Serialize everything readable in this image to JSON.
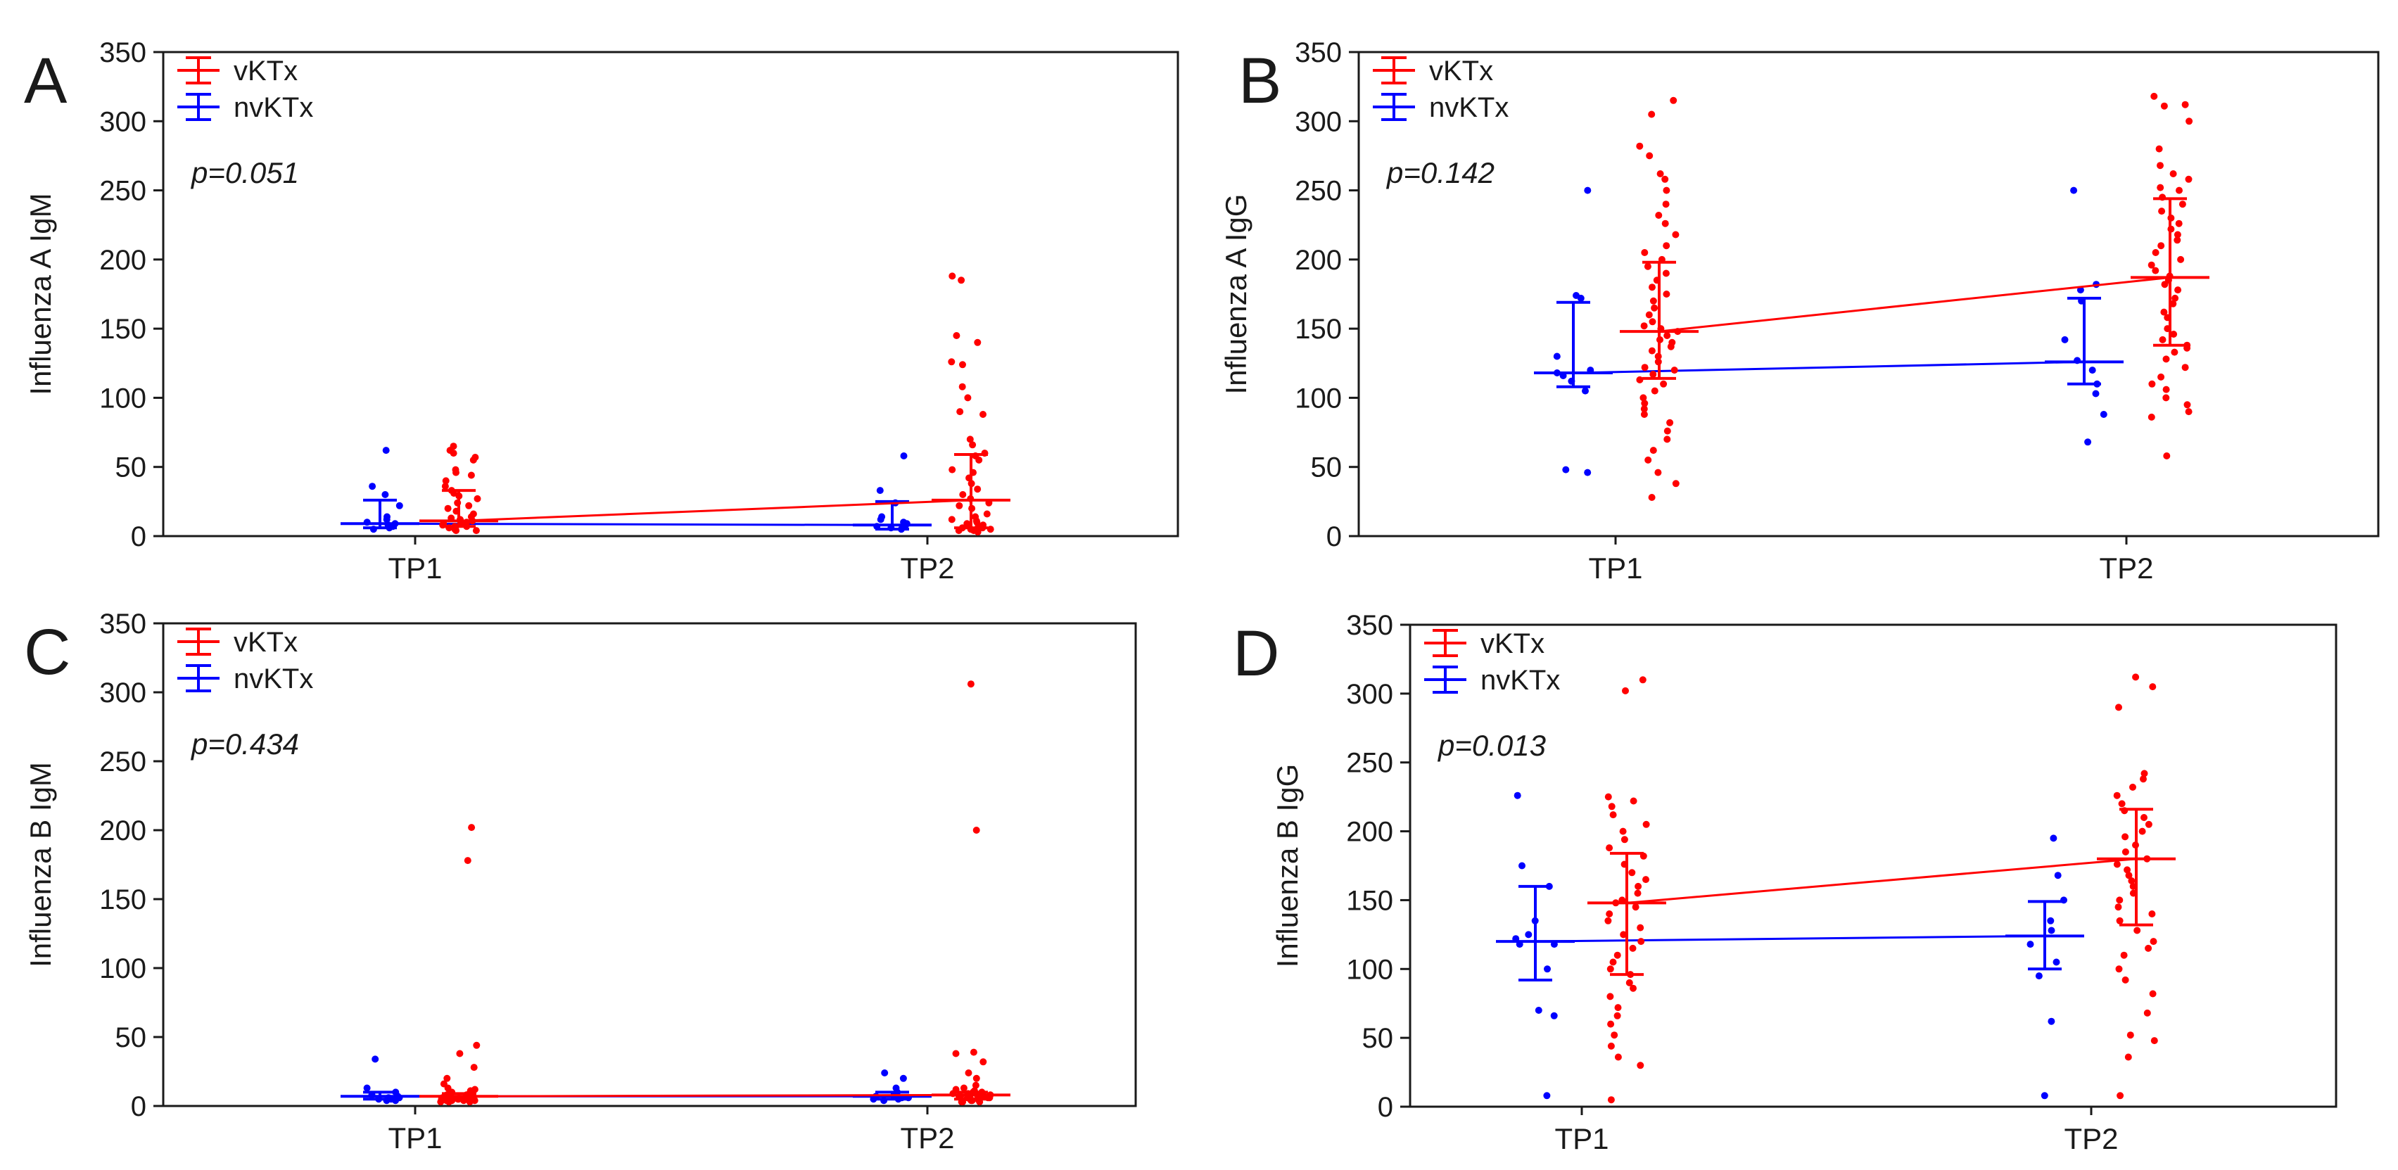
{
  "colors": {
    "vKTx": "#ff0000",
    "nvKTx": "#0000ff",
    "axis": "#1a1a1a"
  },
  "chart_data": [
    {
      "panel": "A",
      "type": "scatter",
      "ylabel": "Influenza A IgM",
      "ylim": [
        0,
        350
      ],
      "yticks": [
        0,
        50,
        100,
        150,
        200,
        250,
        300,
        350
      ],
      "categories": [
        "TP1",
        "TP2"
      ],
      "p_value": "p=0.051",
      "legend_position": "top-left",
      "series": [
        {
          "name": "nvKTx",
          "median": [
            9,
            8
          ],
          "q1": [
            6,
            5
          ],
          "q3": [
            26,
            25
          ],
          "points": [
            [
              62,
              36,
              30,
              22,
              14,
              12,
              10,
              9,
              8,
              7,
              6,
              5
            ],
            [
              58,
              33,
              24,
              14,
              12,
              10,
              9,
              8,
              7,
              6,
              5
            ]
          ]
        },
        {
          "name": "vKTx",
          "median": [
            11,
            26
          ],
          "q1": [
            7,
            6
          ],
          "q3": [
            33,
            59
          ],
          "points": [
            [
              65,
              62,
              60,
              57,
              55,
              48,
              46,
              44,
              40,
              36,
              33,
              31,
              29,
              27,
              24,
              22,
              20,
              18,
              16,
              14,
              13,
              12,
              11,
              10,
              9,
              9,
              8,
              8,
              7,
              7,
              6,
              6,
              5,
              5,
              4,
              4
            ],
            [
              188,
              185,
              145,
              140,
              126,
              124,
              108,
              100,
              90,
              88,
              70,
              66,
              60,
              58,
              55,
              48,
              46,
              42,
              38,
              34,
              30,
              27,
              24,
              22,
              20,
              16,
              14,
              12,
              11,
              10,
              9,
              8,
              7,
              6,
              6,
              5,
              5,
              4,
              4,
              3
            ]
          ]
        }
      ]
    },
    {
      "panel": "B",
      "type": "scatter",
      "ylabel": "Influenza A IgG",
      "ylim": [
        0,
        350
      ],
      "yticks": [
        0,
        50,
        100,
        150,
        200,
        250,
        300,
        350
      ],
      "categories": [
        "TP1",
        "TP2"
      ],
      "p_value": "p=0.142",
      "legend_position": "top-left",
      "series": [
        {
          "name": "nvKTx",
          "median": [
            118,
            126
          ],
          "q1": [
            108,
            110
          ],
          "q3": [
            169,
            172
          ],
          "points": [
            [
              250,
              174,
              172,
              130,
              120,
              118,
              116,
              112,
              105,
              48,
              46
            ],
            [
              250,
              182,
              178,
              170,
              142,
              127,
              120,
              110,
              103,
              88,
              68
            ]
          ]
        },
        {
          "name": "vKTx",
          "median": [
            148,
            187
          ],
          "q1": [
            114,
            138
          ],
          "q3": [
            198,
            244
          ],
          "points": [
            [
              315,
              305,
              282,
              275,
              262,
              258,
              250,
              240,
              232,
              226,
              218,
              210,
              205,
              200,
              195,
              190,
              185,
              180,
              175,
              170,
              165,
              160,
              155,
              152,
              150,
              148,
              145,
              142,
              140,
              137,
              134,
              130,
              126,
              122,
              120,
              117,
              113,
              110,
              105,
              100,
              96,
              92,
              88,
              82,
              76,
              70,
              62,
              55,
              46,
              38,
              28
            ],
            [
              318,
              312,
              311,
              300,
              280,
              268,
              262,
              258,
              252,
              250,
              245,
              240,
              235,
              230,
              226,
              222,
              218,
              214,
              210,
              205,
              200,
              196,
              192,
              188,
              185,
              182,
              178,
              172,
              168,
              162,
              158,
              150,
              146,
              142,
              138,
              136,
              133,
              128,
              122,
              115,
              110,
              106,
              100,
              95,
              90,
              86,
              58
            ]
          ]
        }
      ]
    },
    {
      "panel": "C",
      "type": "scatter",
      "ylabel": "Influenza B IgM",
      "ylim": [
        0,
        350
      ],
      "yticks": [
        0,
        50,
        100,
        150,
        200,
        250,
        300,
        350
      ],
      "categories": [
        "TP1",
        "TP2"
      ],
      "p_value": "p=0.434",
      "legend_position": "top-left",
      "series": [
        {
          "name": "nvKTx",
          "median": [
            7,
            7
          ],
          "q1": [
            5,
            5
          ],
          "q3": [
            10,
            10
          ],
          "points": [
            [
              34,
              13,
              10,
              8,
              7,
              6,
              6,
              5,
              5,
              4,
              4
            ],
            [
              24,
              20,
              13,
              10,
              8,
              7,
              6,
              6,
              5,
              5,
              4
            ]
          ]
        },
        {
          "name": "vKTx",
          "median": [
            7,
            8
          ],
          "q1": [
            5,
            5
          ],
          "q3": [
            9,
            10
          ],
          "points": [
            [
              202,
              178,
              44,
              38,
              28,
              20,
              16,
              13,
              12,
              11,
              10,
              10,
              9,
              9,
              8,
              8,
              8,
              7,
              7,
              7,
              6,
              6,
              6,
              6,
              5,
              5,
              5,
              5,
              4,
              4,
              4,
              4,
              3,
              3,
              3
            ],
            [
              306,
              200,
              39,
              38,
              32,
              24,
              20,
              15,
              13,
              12,
              11,
              10,
              10,
              9,
              9,
              8,
              8,
              8,
              7,
              7,
              7,
              6,
              6,
              6,
              6,
              5,
              5,
              5,
              4,
              4,
              4,
              3,
              3,
              3
            ]
          ]
        }
      ]
    },
    {
      "panel": "D",
      "type": "scatter",
      "ylabel": "Influenza B IgG",
      "ylim": [
        0,
        350
      ],
      "yticks": [
        0,
        50,
        100,
        150,
        200,
        250,
        300,
        350
      ],
      "categories": [
        "TP1",
        "TP2"
      ],
      "p_value": "p=0.013",
      "legend_position": "top-left",
      "series": [
        {
          "name": "nvKTx",
          "median": [
            120,
            124
          ],
          "q1": [
            92,
            100
          ],
          "q3": [
            160,
            149
          ],
          "points": [
            [
              226,
              175,
              160,
              135,
              125,
              122,
              118,
              118,
              100,
              70,
              66,
              8
            ],
            [
              195,
              168,
              150,
              135,
              128,
              118,
              105,
              95,
              62,
              8
            ]
          ]
        },
        {
          "name": "vKTx",
          "median": [
            148,
            180
          ],
          "q1": [
            96,
            132
          ],
          "q3": [
            184,
            216
          ],
          "points": [
            [
              310,
              302,
              225,
              222,
              218,
              212,
              205,
              200,
              194,
              188,
              182,
              176,
              170,
              165,
              160,
              155,
              150,
              148,
              145,
              140,
              135,
              130,
              125,
              120,
              115,
              110,
              105,
              100,
              96,
              90,
              86,
              80,
              72,
              66,
              60,
              52,
              44,
              36,
              30,
              5
            ],
            [
              312,
              305,
              290,
              242,
              238,
              232,
              226,
              220,
              215,
              210,
              205,
              200,
              196,
              190,
              185,
              180,
              176,
              172,
              168,
              164,
              160,
              155,
              150,
              145,
              140,
              135,
              128,
              120,
              115,
              110,
              100,
              92,
              82,
              68,
              52,
              48,
              36,
              8
            ]
          ]
        }
      ]
    }
  ]
}
